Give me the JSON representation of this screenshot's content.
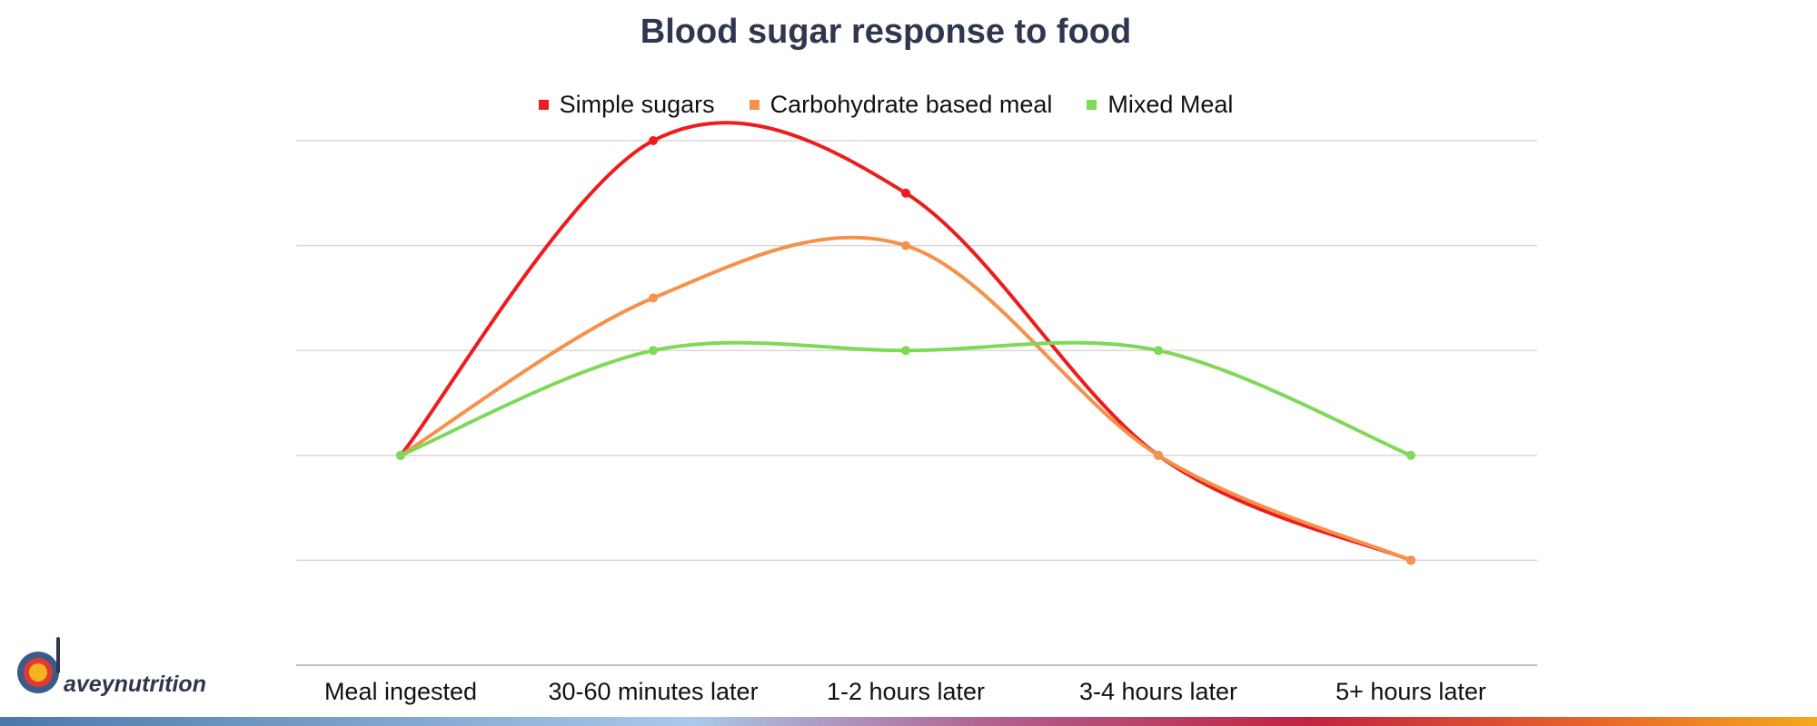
{
  "title": "Blood sugar response to food",
  "logo": {
    "text": "aveynutrition"
  },
  "colors": {
    "grid": "#d9d9d9",
    "axis": "#bfbfbf",
    "title": "#2e3650"
  },
  "chart_data": {
    "type": "line",
    "smooth": true,
    "title": "Blood sugar response to food",
    "xlabel": "",
    "ylabel": "",
    "categories": [
      "Meal ingested",
      "30-60 minutes later",
      "1-2 hours later",
      "3-4 hours later",
      "5+ hours later"
    ],
    "ylim": [
      0,
      5
    ],
    "grid": true,
    "legend_position": "top-center",
    "series": [
      {
        "name": "Simple sugars",
        "color": "#ee1c1c",
        "values": [
          2,
          5,
          4.5,
          2,
          1
        ]
      },
      {
        "name": "Carbohydrate based meal",
        "color": "#f5914a",
        "values": [
          2,
          3.5,
          4,
          2,
          1
        ]
      },
      {
        "name": "Mixed Meal",
        "color": "#7ed957",
        "values": [
          2,
          3,
          3,
          3,
          2
        ]
      }
    ]
  }
}
